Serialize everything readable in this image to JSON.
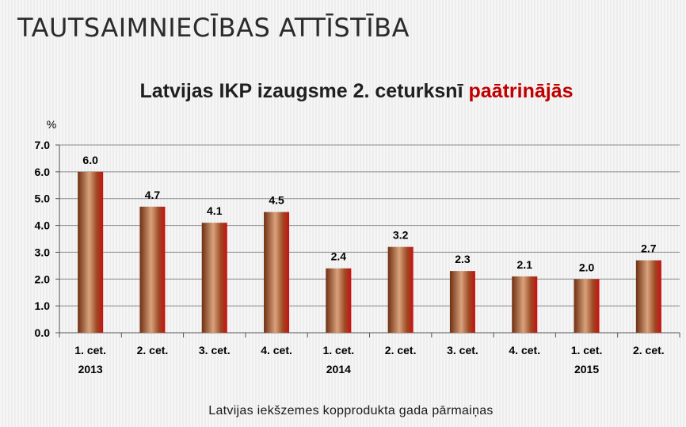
{
  "slide_title": "TAUTSAIMNIECĪBAS ATTĪSTĪBA",
  "chart_data": {
    "type": "bar",
    "title_main": "Latvijas IKP izaugsme 2. ceturksnī ",
    "title_highlight": "paātrinājās",
    "unit_label": "%",
    "categories": [
      "1. cet.",
      "2. cet.",
      "3. cet.",
      "4. cet.",
      "1. cet.",
      "2. cet.",
      "3. cet.",
      "4. cet.",
      "1. cet.",
      "2. cet."
    ],
    "year_labels": [
      "2013",
      "",
      "",
      "",
      "2014",
      "",
      "",
      "",
      "2015",
      ""
    ],
    "values": [
      6.0,
      4.7,
      4.1,
      4.5,
      2.4,
      3.2,
      2.3,
      2.1,
      2.0,
      2.7
    ],
    "data_labels": [
      "6.0",
      "4.7",
      "4.1",
      "4.5",
      "2.4",
      "3.2",
      "2.3",
      "2.1",
      "2.0",
      "2.7"
    ],
    "y_ticks": [
      "0.0",
      "1.0",
      "2.0",
      "3.0",
      "4.0",
      "5.0",
      "6.0",
      "7.0"
    ],
    "ylim": [
      0,
      7
    ],
    "grid": true,
    "bar_color": "#a0522d",
    "highlight_color": "#c00000"
  },
  "caption": "Latvijas iekšzemes kopprodukta gada pārmaiņas"
}
